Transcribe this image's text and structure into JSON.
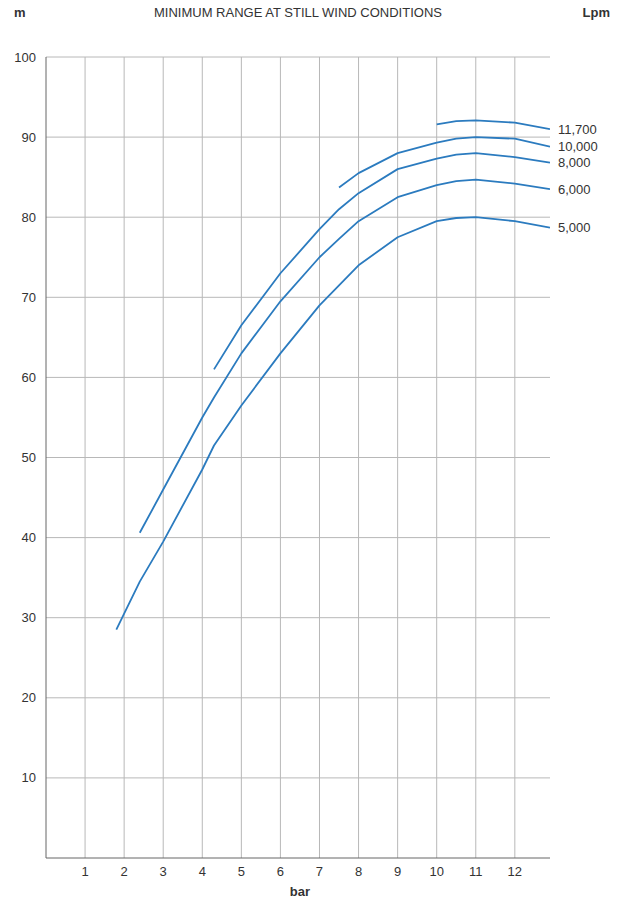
{
  "chart_data": {
    "type": "line",
    "title": "MINIMUM RANGE AT STILL WIND CONDITIONS",
    "x_label": "bar",
    "y_label": "m",
    "annotations": [
      "Lpm"
    ],
    "x": [
      1.8,
      2.4,
      3,
      4,
      4.3,
      5,
      6,
      7,
      7.5,
      8,
      9,
      10,
      10.5,
      11,
      12,
      12.9
    ],
    "series": [
      {
        "name": "11,700",
        "color": "#2b7bbf",
        "values": [
          null,
          null,
          null,
          null,
          null,
          null,
          null,
          null,
          null,
          null,
          null,
          91.6,
          92,
          92.1,
          91.8,
          91
        ]
      },
      {
        "name": "10,000",
        "color": "#2b7bbf",
        "values": [
          null,
          null,
          null,
          null,
          null,
          null,
          null,
          null,
          83.7,
          85.5,
          88,
          89.3,
          89.8,
          90,
          89.8,
          88.8
        ]
      },
      {
        "name": "8,000",
        "color": "#2b7bbf",
        "values": [
          null,
          null,
          null,
          null,
          61,
          66.5,
          73,
          78.5,
          81,
          83,
          86,
          87.3,
          87.8,
          88,
          87.5,
          86.8
        ]
      },
      {
        "name": "6,000",
        "color": "#2b7bbf",
        "values": [
          null,
          40.6,
          46,
          55,
          57.5,
          63,
          69.5,
          75,
          77.3,
          79.5,
          82.5,
          84,
          84.5,
          84.7,
          84.2,
          83.5
        ]
      },
      {
        "name": "5,000",
        "color": "#2b7bbf",
        "values": [
          28.5,
          34.5,
          39.5,
          48.5,
          51.5,
          56.5,
          63,
          69,
          71.5,
          74,
          77.5,
          79.5,
          79.9,
          80,
          79.5,
          78.7
        ]
      }
    ],
    "xlim": [
      0,
      12.9
    ],
    "ylim": [
      0,
      100
    ],
    "xticks": [
      1,
      2,
      3,
      4,
      5,
      6,
      7,
      8,
      9,
      10,
      11,
      12
    ],
    "yticks": [
      10,
      20,
      30,
      40,
      50,
      60,
      70,
      80,
      90,
      100
    ],
    "grid": true,
    "legend": "right"
  }
}
